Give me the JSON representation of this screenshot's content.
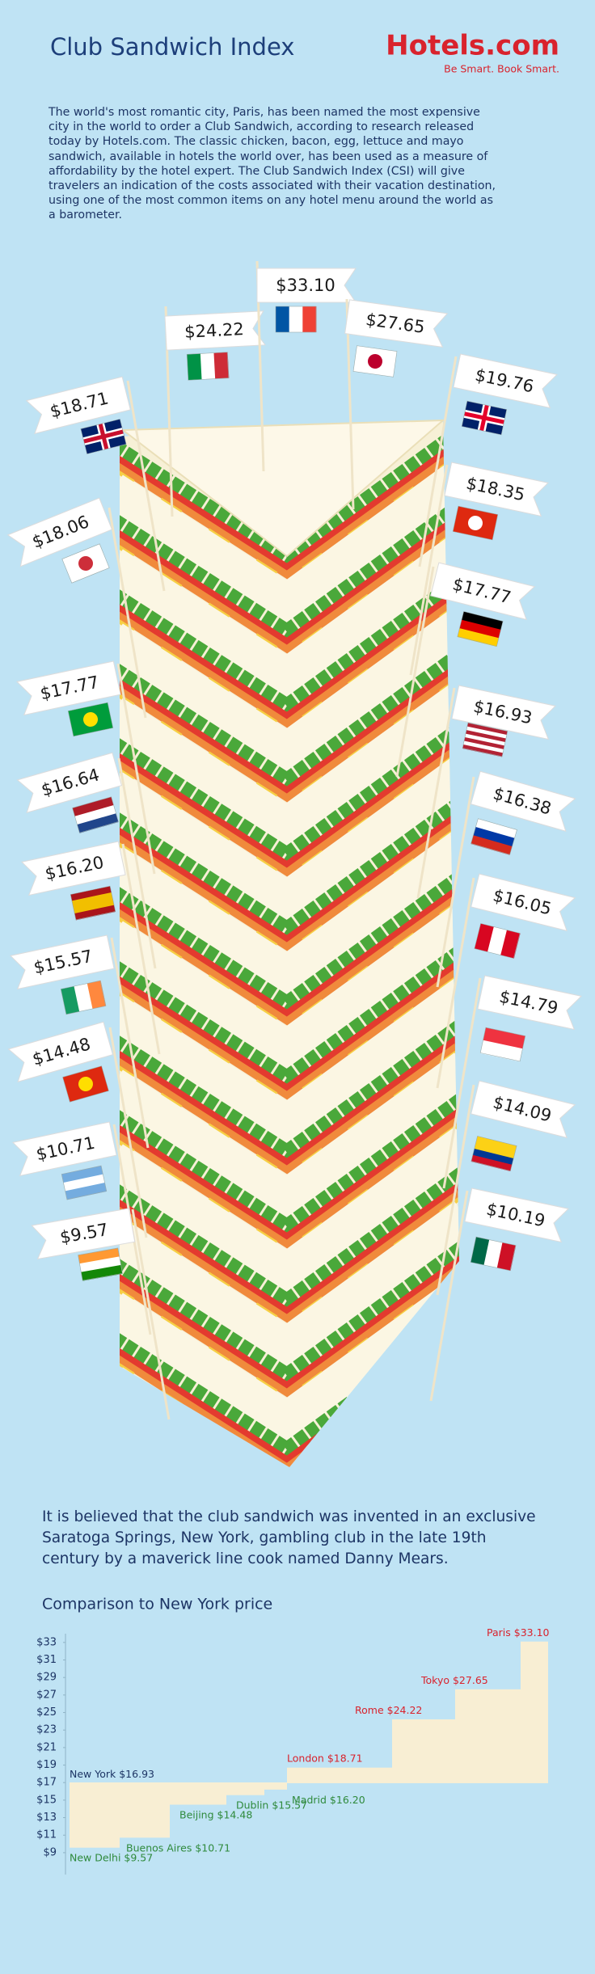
{
  "header": {
    "title": "Club Sandwich Index",
    "logo": "Hotels.com",
    "tagline": "Be Smart. Book Smart."
  },
  "intro": "The world's most romantic city, Paris, has been named the most expensive city in the world to order a Club Sandwich, according to research released today by Hotels.com. The classic chicken, bacon, egg, lettuce and mayo sandwich, available in hotels the world over, has been used as a measure of affordability by the hotel expert. The Club Sandwich Index (CSI) will give travelers an indication of the costs associated with their vacation destination, using one of the most common items on any hotel menu around the world as a barometer.",
  "flags": [
    "$24.22",
    "$33.10",
    "$27.65",
    "$18.71",
    "$19.76",
    "$18.06",
    "$18.35",
    "$17.77",
    "$17.77",
    "$16.93",
    "$16.64",
    "$16.38",
    "$16.20",
    "$16.05",
    "$15.57",
    "$14.79",
    "$14.48",
    "$14.09",
    "$10.71",
    "$10.19",
    "$9.57"
  ],
  "history": "It is believed that the club sandwich was invented in an exclusive Saratoga Springs, New York, gambling club in the late 19th century by a maverick line cook named Danny Mears.",
  "chart_data": {
    "type": "step",
    "title": "Comparison to New York price",
    "categories": [
      "New Delhi",
      "Buenos Aires",
      "Beijing",
      "Dublin",
      "Madrid",
      "New York",
      "London",
      "Rome",
      "Tokyo",
      "Paris"
    ],
    "values": [
      9.57,
      10.71,
      14.48,
      15.57,
      16.2,
      16.93,
      18.71,
      24.22,
      27.65,
      33.1
    ],
    "value_labels": [
      "$9.57",
      "$10.71",
      "$14.48",
      "$15.57",
      "$16.20",
      "$16.93",
      "$18.71",
      "$24.22",
      "$27.65",
      "$33.10"
    ],
    "ylim": [
      6.5,
      34
    ],
    "yticks": [
      {
        "value": 9,
        "label": "$9"
      },
      {
        "value": 11,
        "label": "$11"
      },
      {
        "value": 13,
        "label": "$13"
      },
      {
        "value": 15,
        "label": "$15"
      },
      {
        "value": 17,
        "label": "$17"
      },
      {
        "value": 19,
        "label": "$19"
      },
      {
        "value": 21,
        "label": "$21"
      },
      {
        "value": 23,
        "label": "$23"
      },
      {
        "value": 25,
        "label": "$25"
      },
      {
        "value": 27,
        "label": "$27"
      },
      {
        "value": 29,
        "label": "$29"
      },
      {
        "value": 31,
        "label": "$31"
      },
      {
        "value": 33,
        "label": "$33"
      }
    ],
    "color": "#f8eed3"
  }
}
